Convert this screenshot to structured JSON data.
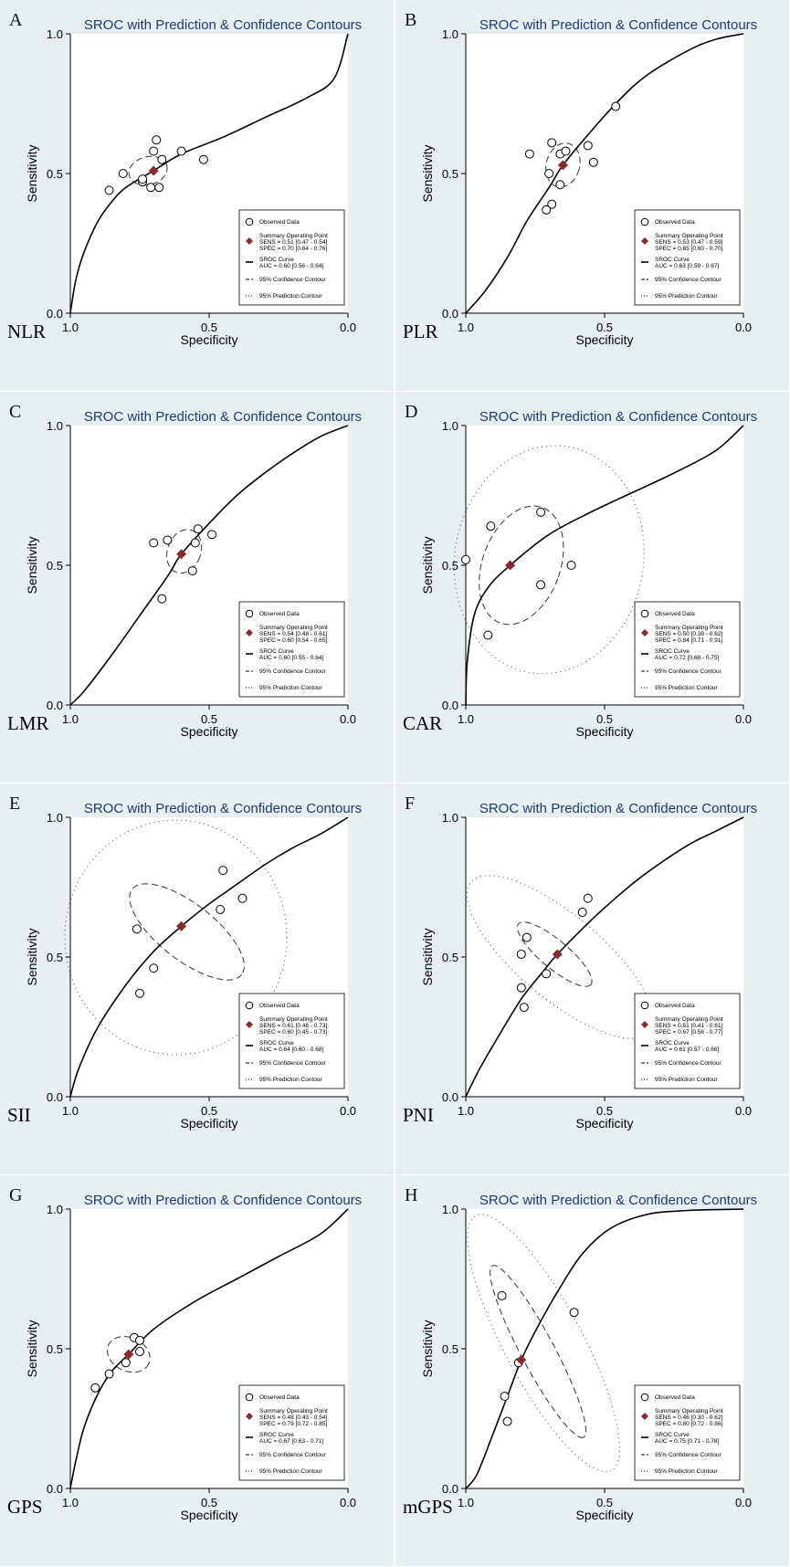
{
  "common": {
    "title": "SROC with Prediction & Confidence Contours",
    "xlabel": "Specificity",
    "ylabel": "Sensitivity",
    "x_ticks": [
      "1.0",
      "0.5",
      "0.0"
    ],
    "y_ticks": [
      "0.0",
      "0.5",
      "1.0"
    ],
    "legend": {
      "observed": "Observed Data",
      "summary": "Summary Operating Point",
      "sroc": "SROC Curve",
      "conf": "95% Confidence Contour",
      "pred": "95% Prediction Contour"
    },
    "colors": {
      "summary_point": "#8b2a2a",
      "title": "#1f3a6e",
      "panel_bg": "#e8eff3",
      "plot_bg": "#ffffff"
    }
  },
  "chart_data": [
    {
      "type": "scatter",
      "panel_letter": "A",
      "label": "NLR",
      "title": "SROC with Prediction & Confidence Contours",
      "xlabel": "Specificity",
      "ylabel": "Sensitivity",
      "xlim": [
        1.0,
        0.0
      ],
      "ylim": [
        0.0,
        1.0
      ],
      "grid": false,
      "legend_position": "bottom-right",
      "observed": [
        [
          0.86,
          0.44
        ],
        [
          0.81,
          0.5
        ],
        [
          0.74,
          0.47
        ],
        [
          0.74,
          0.48
        ],
        [
          0.71,
          0.45
        ],
        [
          0.7,
          0.58
        ],
        [
          0.67,
          0.55
        ],
        [
          0.69,
          0.62
        ],
        [
          0.68,
          0.45
        ],
        [
          0.6,
          0.58
        ],
        [
          0.52,
          0.55
        ]
      ],
      "summary": {
        "spec": 0.7,
        "sens": 0.51
      },
      "sens_text": "SENS = 0.51 [0.47 - 0.54]",
      "spec_text": "SPEC = 0.70 [0.64 - 0.76]",
      "auc_text": "AUC = 0.60 [0.56 - 0.64]",
      "auc": 0.6,
      "sroc_curve": [
        [
          1.0,
          0.0
        ],
        [
          0.98,
          0.12
        ],
        [
          0.95,
          0.22
        ],
        [
          0.9,
          0.33
        ],
        [
          0.85,
          0.4
        ],
        [
          0.8,
          0.45
        ],
        [
          0.7,
          0.51
        ],
        [
          0.6,
          0.57
        ],
        [
          0.45,
          0.63
        ],
        [
          0.3,
          0.7
        ],
        [
          0.15,
          0.77
        ],
        [
          0.05,
          0.84
        ],
        [
          0.0,
          1.0
        ]
      ],
      "conf_ellipse": {
        "spec": 0.72,
        "sens": 0.51,
        "rx": 0.07,
        "ry": 0.05,
        "angle": 15
      }
    },
    {
      "type": "scatter",
      "panel_letter": "B",
      "label": "PLR",
      "title": "SROC with Prediction & Confidence Contours",
      "xlabel": "Specificity",
      "ylabel": "Sensitivity",
      "xlim": [
        1.0,
        0.0
      ],
      "ylim": [
        0.0,
        1.0
      ],
      "grid": false,
      "legend_position": "bottom-right",
      "observed": [
        [
          0.77,
          0.57
        ],
        [
          0.69,
          0.61
        ],
        [
          0.7,
          0.5
        ],
        [
          0.66,
          0.57
        ],
        [
          0.64,
          0.58
        ],
        [
          0.56,
          0.6
        ],
        [
          0.54,
          0.54
        ],
        [
          0.66,
          0.46
        ],
        [
          0.69,
          0.39
        ],
        [
          0.71,
          0.37
        ],
        [
          0.46,
          0.74
        ]
      ],
      "summary": {
        "spec": 0.65,
        "sens": 0.53
      },
      "sens_text": "SENS = 0.53 [0.47 - 0.59]",
      "spec_text": "SPEC = 0.65 [0.60 - 0.70]",
      "auc_text": "AUC = 0.63 [0.59 - 0.67]",
      "auc": 0.63,
      "sroc_curve": [
        [
          1.0,
          0.0
        ],
        [
          0.93,
          0.08
        ],
        [
          0.85,
          0.2
        ],
        [
          0.78,
          0.33
        ],
        [
          0.7,
          0.45
        ],
        [
          0.65,
          0.53
        ],
        [
          0.55,
          0.65
        ],
        [
          0.45,
          0.76
        ],
        [
          0.35,
          0.85
        ],
        [
          0.2,
          0.94
        ],
        [
          0.1,
          0.98
        ],
        [
          0.0,
          1.0
        ]
      ],
      "conf_ellipse": {
        "spec": 0.65,
        "sens": 0.53,
        "rx": 0.06,
        "ry": 0.08,
        "angle": -15
      }
    },
    {
      "type": "scatter",
      "panel_letter": "C",
      "label": "LMR",
      "title": "SROC with Prediction & Confidence Contours",
      "xlabel": "Specificity",
      "ylabel": "Sensitivity",
      "xlim": [
        1.0,
        0.0
      ],
      "ylim": [
        0.0,
        1.0
      ],
      "grid": false,
      "legend_position": "bottom-right",
      "observed": [
        [
          0.7,
          0.58
        ],
        [
          0.65,
          0.59
        ],
        [
          0.54,
          0.63
        ],
        [
          0.49,
          0.61
        ],
        [
          0.55,
          0.58
        ],
        [
          0.56,
          0.48
        ],
        [
          0.67,
          0.38
        ]
      ],
      "summary": {
        "spec": 0.6,
        "sens": 0.54
      },
      "sens_text": "SENS = 0.54 [0.48 - 0.61]",
      "spec_text": "SPEC = 0.60 [0.54 - 0.65]",
      "auc_text": "AUC = 0.60 [0.55 - 0.64]",
      "auc": 0.6,
      "sroc_curve": [
        [
          1.0,
          0.0
        ],
        [
          0.95,
          0.05
        ],
        [
          0.85,
          0.18
        ],
        [
          0.75,
          0.32
        ],
        [
          0.65,
          0.46
        ],
        [
          0.6,
          0.54
        ],
        [
          0.5,
          0.65
        ],
        [
          0.4,
          0.75
        ],
        [
          0.3,
          0.83
        ],
        [
          0.2,
          0.9
        ],
        [
          0.1,
          0.96
        ],
        [
          0.0,
          1.0
        ]
      ],
      "conf_ellipse": {
        "spec": 0.59,
        "sens": 0.55,
        "rx": 0.06,
        "ry": 0.08,
        "angle": -20
      }
    },
    {
      "type": "scatter",
      "panel_letter": "D",
      "label": "CAR",
      "title": "SROC with Prediction & Confidence Contours",
      "xlabel": "Specificity",
      "ylabel": "Sensitivity",
      "xlim": [
        1.0,
        0.0
      ],
      "ylim": [
        0.0,
        1.0
      ],
      "grid": false,
      "legend_position": "bottom-right",
      "observed": [
        [
          1.0,
          0.52
        ],
        [
          0.91,
          0.64
        ],
        [
          0.73,
          0.69
        ],
        [
          0.62,
          0.5
        ],
        [
          0.73,
          0.43
        ],
        [
          0.92,
          0.25
        ]
      ],
      "summary": {
        "spec": 0.84,
        "sens": 0.5
      },
      "sens_text": "SENS = 0.50 [0.38 - 0.62]",
      "spec_text": "SPEC = 0.84 [0.71 - 0.91]",
      "auc_text": "AUC = 0.72 [0.68 - 0.75]",
      "auc": 0.72,
      "sroc_curve": [
        [
          1.0,
          0.0
        ],
        [
          0.995,
          0.15
        ],
        [
          0.97,
          0.32
        ],
        [
          0.92,
          0.42
        ],
        [
          0.84,
          0.5
        ],
        [
          0.7,
          0.61
        ],
        [
          0.55,
          0.69
        ],
        [
          0.4,
          0.76
        ],
        [
          0.25,
          0.83
        ],
        [
          0.1,
          0.91
        ],
        [
          0.0,
          1.0
        ]
      ],
      "conf_ellipse": {
        "spec": 0.8,
        "sens": 0.5,
        "rx": 0.14,
        "ry": 0.22,
        "angle": -20
      },
      "pred_contour": {
        "spec": 0.7,
        "sens": 0.52,
        "rx": 0.34,
        "ry": 0.41,
        "angle": -10
      }
    },
    {
      "type": "scatter",
      "panel_letter": "E",
      "label": "SII",
      "title": "SROC with Prediction & Confidence Contours",
      "xlabel": "Specificity",
      "ylabel": "Sensitivity",
      "xlim": [
        1.0,
        0.0
      ],
      "ylim": [
        0.0,
        1.0
      ],
      "grid": false,
      "legend_position": "bottom-right",
      "observed": [
        [
          0.76,
          0.6
        ],
        [
          0.7,
          0.46
        ],
        [
          0.75,
          0.37
        ],
        [
          0.45,
          0.81
        ],
        [
          0.46,
          0.67
        ],
        [
          0.38,
          0.71
        ]
      ],
      "summary": {
        "spec": 0.6,
        "sens": 0.61
      },
      "sens_text": "SENS = 0.61 [0.48 - 0.73]",
      "spec_text": "SPEC = 0.60 [0.45 - 0.73]",
      "auc_text": "AUC = 0.64 [0.60 - 0.68]",
      "auc": 0.64,
      "sroc_curve": [
        [
          1.0,
          0.0
        ],
        [
          0.97,
          0.1
        ],
        [
          0.9,
          0.25
        ],
        [
          0.8,
          0.4
        ],
        [
          0.7,
          0.52
        ],
        [
          0.6,
          0.61
        ],
        [
          0.5,
          0.69
        ],
        [
          0.4,
          0.76
        ],
        [
          0.3,
          0.83
        ],
        [
          0.2,
          0.89
        ],
        [
          0.1,
          0.94
        ],
        [
          0.0,
          1.0
        ]
      ],
      "conf_ellipse": {
        "spec": 0.58,
        "sens": 0.59,
        "rx": 0.25,
        "ry": 0.1,
        "angle": -38
      },
      "pred_contour": {
        "spec": 0.62,
        "sens": 0.57,
        "rx": 0.4,
        "ry": 0.42,
        "angle": 0
      }
    },
    {
      "type": "scatter",
      "panel_letter": "F",
      "label": "PNI",
      "title": "SROC with Prediction & Confidence Contours",
      "xlabel": "Specificity",
      "ylabel": "Sensitivity",
      "xlim": [
        1.0,
        0.0
      ],
      "ylim": [
        0.0,
        1.0
      ],
      "grid": false,
      "legend_position": "bottom-right",
      "observed": [
        [
          0.78,
          0.57
        ],
        [
          0.8,
          0.51
        ],
        [
          0.8,
          0.39
        ],
        [
          0.71,
          0.44
        ],
        [
          0.79,
          0.32
        ],
        [
          0.58,
          0.66
        ],
        [
          0.56,
          0.71
        ]
      ],
      "summary": {
        "spec": 0.67,
        "sens": 0.51
      },
      "sens_text": "SENS = 0.51 [0.41 - 0.61]",
      "spec_text": "SPEC = 0.67 [0.56 - 0.77]",
      "auc_text": "AUC = 0.61 [0.57 - 0.66]",
      "auc": 0.61,
      "sroc_curve": [
        [
          1.0,
          0.0
        ],
        [
          0.95,
          0.1
        ],
        [
          0.88,
          0.22
        ],
        [
          0.8,
          0.35
        ],
        [
          0.72,
          0.45
        ],
        [
          0.67,
          0.51
        ],
        [
          0.55,
          0.63
        ],
        [
          0.45,
          0.72
        ],
        [
          0.35,
          0.8
        ],
        [
          0.2,
          0.9
        ],
        [
          0.1,
          0.95
        ],
        [
          0.0,
          1.0
        ]
      ],
      "conf_ellipse": {
        "spec": 0.68,
        "sens": 0.51,
        "rx": 0.17,
        "ry": 0.05,
        "angle": -40
      },
      "pred_contour": {
        "spec": 0.66,
        "sens": 0.5,
        "rx": 0.42,
        "ry": 0.15,
        "angle": -40
      }
    },
    {
      "type": "scatter",
      "panel_letter": "G",
      "label": "GPS",
      "title": "SROC with Prediction & Confidence Contours",
      "xlabel": "Specificity",
      "ylabel": "Sensitivity",
      "xlim": [
        1.0,
        0.0
      ],
      "ylim": [
        0.0,
        1.0
      ],
      "grid": false,
      "legend_position": "bottom-right",
      "observed": [
        [
          0.91,
          0.36
        ],
        [
          0.86,
          0.41
        ],
        [
          0.8,
          0.45
        ],
        [
          0.77,
          0.54
        ],
        [
          0.75,
          0.53
        ],
        [
          0.75,
          0.49
        ]
      ],
      "summary": {
        "spec": 0.79,
        "sens": 0.48
      },
      "sens_text": "SENS = 0.48 [0.43 - 0.54]",
      "spec_text": "SPEC = 0.79 [0.72 - 0.85]",
      "auc_text": "AUC = 0.67 [0.63 - 0.71]",
      "auc": 0.67,
      "sroc_curve": [
        [
          1.0,
          0.0
        ],
        [
          0.98,
          0.1
        ],
        [
          0.95,
          0.22
        ],
        [
          0.9,
          0.34
        ],
        [
          0.85,
          0.42
        ],
        [
          0.79,
          0.48
        ],
        [
          0.7,
          0.57
        ],
        [
          0.55,
          0.67
        ],
        [
          0.4,
          0.75
        ],
        [
          0.25,
          0.83
        ],
        [
          0.1,
          0.91
        ],
        [
          0.0,
          1.0
        ]
      ],
      "conf_ellipse": {
        "spec": 0.79,
        "sens": 0.48,
        "rx": 0.08,
        "ry": 0.06,
        "angle": -25
      }
    },
    {
      "type": "scatter",
      "panel_letter": "H",
      "label": "mGPS",
      "title": "SROC with Prediction & Confidence Contours",
      "xlabel": "Specificity",
      "ylabel": "Sensitivity",
      "xlim": [
        1.0,
        0.0
      ],
      "ylim": [
        0.0,
        1.0
      ],
      "grid": false,
      "legend_position": "bottom-right",
      "observed": [
        [
          0.87,
          0.69
        ],
        [
          0.86,
          0.33
        ],
        [
          0.85,
          0.24
        ],
        [
          0.81,
          0.45
        ],
        [
          0.61,
          0.63
        ]
      ],
      "summary": {
        "spec": 0.8,
        "sens": 0.46
      },
      "sens_text": "SENS = 0.46 [0.30 - 0.62]",
      "spec_text": "SPEC = 0.80 [0.72 - 0.86]",
      "auc_text": "AUC = 0.75 [0.71 - 0.78]",
      "auc": 0.75,
      "sroc_curve": [
        [
          1.0,
          0.0
        ],
        [
          0.96,
          0.05
        ],
        [
          0.9,
          0.2
        ],
        [
          0.85,
          0.33
        ],
        [
          0.8,
          0.46
        ],
        [
          0.74,
          0.58
        ],
        [
          0.66,
          0.72
        ],
        [
          0.58,
          0.84
        ],
        [
          0.48,
          0.93
        ],
        [
          0.35,
          0.98
        ],
        [
          0.2,
          0.995
        ],
        [
          0.0,
          1.0
        ]
      ],
      "conf_ellipse": {
        "spec": 0.74,
        "sens": 0.49,
        "rx": 0.35,
        "ry": 0.06,
        "angle": -62
      },
      "pred_contour": {
        "spec": 0.72,
        "sens": 0.52,
        "rx": 0.52,
        "ry": 0.14,
        "angle": -62
      }
    }
  ]
}
